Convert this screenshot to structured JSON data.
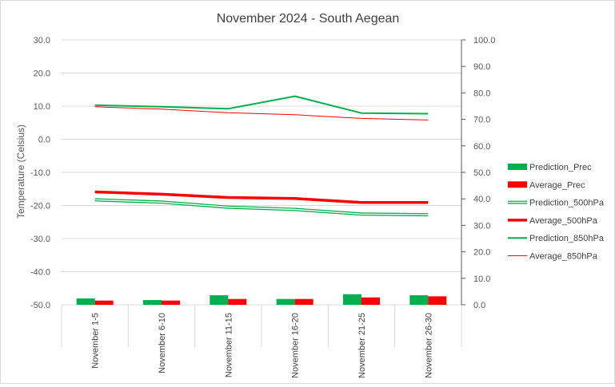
{
  "chart_data": {
    "type": "bar+line",
    "title": "November 2024 - South Aegean",
    "ylabel_left": "Temperature (Celsius)",
    "ylabel_right": "",
    "categories": [
      "November 1-5",
      "November 6-10",
      "November 11-15",
      "November 16-20",
      "November 21-25",
      "November 26-30"
    ],
    "y_left": {
      "min": -50,
      "max": 30,
      "step": 10,
      "ticks": [
        "-50.0",
        "-40.0",
        "-30.0",
        "-20.0",
        "-10.0",
        "0.0",
        "10.0",
        "20.0",
        "30.0"
      ]
    },
    "y_right": {
      "min": 0,
      "max": 100,
      "step": 10,
      "ticks": [
        "0.0",
        "10.0",
        "20.0",
        "30.0",
        "40.0",
        "50.0",
        "60.0",
        "70.0",
        "80.0",
        "90.0",
        "100.0"
      ]
    },
    "grid": "horizontal",
    "legend_position": "right",
    "bar_series": [
      {
        "name": "Prediction_Prec",
        "axis": "right",
        "color": "#00b050",
        "values": [
          2.4,
          1.8,
          3.6,
          2.2,
          4.0,
          3.6
        ]
      },
      {
        "name": "Average_Prec",
        "axis": "right",
        "color": "#ff0000",
        "values": [
          1.6,
          1.6,
          2.2,
          2.2,
          2.8,
          3.2
        ]
      }
    ],
    "line_series": [
      {
        "name": "Prediction_500hPa",
        "axis": "left",
        "color": "#00b050",
        "style": "double",
        "values": [
          -18.3,
          -19.0,
          -20.5,
          -21.2,
          -22.6,
          -22.8
        ]
      },
      {
        "name": "Average_500hPa",
        "axis": "left",
        "color": "#ff0000",
        "style": "thick",
        "values": [
          -15.9,
          -16.6,
          -17.6,
          -17.9,
          -19.1,
          -19.1
        ]
      },
      {
        "name": "Prediction_850hPa",
        "axis": "left",
        "color": "#00b050",
        "style": "medium",
        "values": [
          10.3,
          9.8,
          9.2,
          13.0,
          7.9,
          7.7
        ]
      },
      {
        "name": "Average_850hPa",
        "axis": "left",
        "color": "#ff0000",
        "style": "thin",
        "values": [
          9.8,
          9.1,
          8.0,
          7.4,
          6.3,
          5.8
        ]
      }
    ],
    "legend": [
      "Prediction_Prec",
      "Average_Prec",
      "Prediction_500hPa",
      "Average_500hPa",
      "Prediction_850hPa",
      "Average_850hPa"
    ]
  }
}
